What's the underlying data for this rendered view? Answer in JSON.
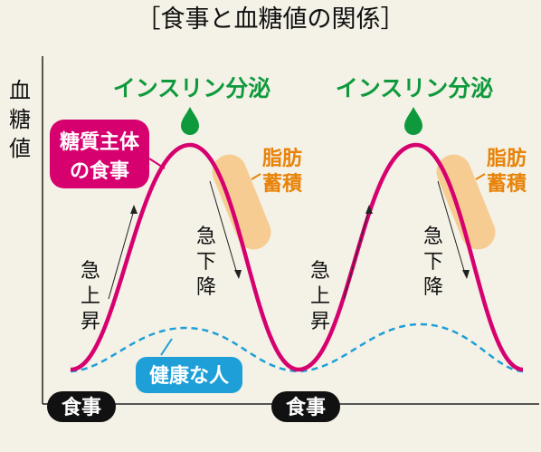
{
  "title": "［食事と血糖値の関係］",
  "y_axis_label": [
    "血",
    "糖",
    "値"
  ],
  "insulin_label": "インスリン分泌",
  "sugar_diet_label": [
    "糖質主体",
    "の食事"
  ],
  "fat_label": [
    "脂肪",
    "蓄積"
  ],
  "rise_label": [
    "急",
    "上",
    "昇"
  ],
  "fall_label": [
    "急",
    "下",
    "降"
  ],
  "healthy_label": "健康な人",
  "meal_label": "食事",
  "colors": {
    "high_curve": "#d6006f",
    "healthy_curve": "#1e9fd8",
    "insulin": "#0e9a3c",
    "fat": "#f7c888",
    "fat_text": "#e8830a",
    "background": "#f4f1e6"
  }
}
